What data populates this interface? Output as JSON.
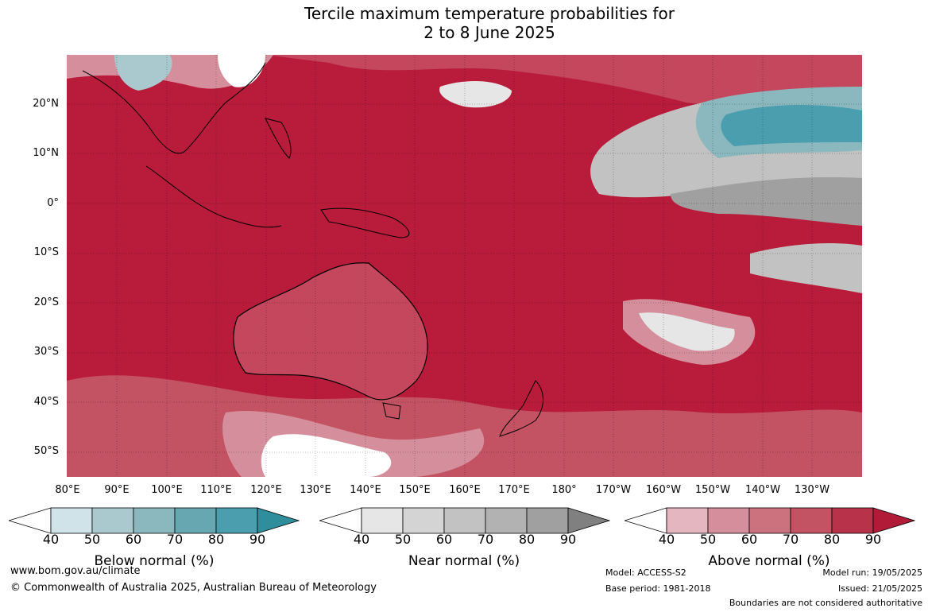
{
  "title_line1": "Tercile maximum temperature probabilities for",
  "title_line2": "2 to 8 June 2025",
  "lat_labels": [
    "20°N",
    "10°N",
    "0°",
    "10°S",
    "20°S",
    "30°S",
    "40°S",
    "50°S"
  ],
  "lon_labels": [
    "80°E",
    "90°E",
    "100°E",
    "110°E",
    "120°E",
    "130°E",
    "140°E",
    "150°E",
    "160°E",
    "170°E",
    "180°",
    "170°W",
    "160°W",
    "150°W",
    "140°W",
    "130°W"
  ],
  "colorbars": [
    {
      "title": "Below normal (%)",
      "ticks": [
        "40",
        "50",
        "60",
        "70",
        "80",
        "90"
      ],
      "colors": [
        "#ffffff",
        "#cfe3e8",
        "#a9c9cf",
        "#8bb8be",
        "#66a7b2",
        "#4a9eae",
        "#2f8e9b"
      ]
    },
    {
      "title": "Near normal (%)",
      "ticks": [
        "40",
        "50",
        "60",
        "70",
        "80",
        "90"
      ],
      "colors": [
        "#ffffff",
        "#e6e6e6",
        "#d4d4d4",
        "#c2c2c2",
        "#b2b2b2",
        "#a0a0a0",
        "#808080"
      ]
    },
    {
      "title": "Above normal (%)",
      "ticks": [
        "40",
        "50",
        "60",
        "70",
        "80",
        "90"
      ],
      "colors": [
        "#ffffff",
        "#e4b6c0",
        "#d58f9c",
        "#cb727e",
        "#c35262",
        "#b8334a",
        "#b11b38"
      ]
    }
  ],
  "footer": {
    "website": "www.bom.gov.au/climate",
    "copyright": "© Commonwealth of Australia 2025, Australian Bureau of Meteorology",
    "model": "Model: ACCESS-S2",
    "base_period": "Base period: 1981-2018",
    "model_run": "Model run: 19/05/2025",
    "issued": "Issued: 21/05/2025",
    "disclaimer": "Boundaries are not considered authoritative"
  }
}
